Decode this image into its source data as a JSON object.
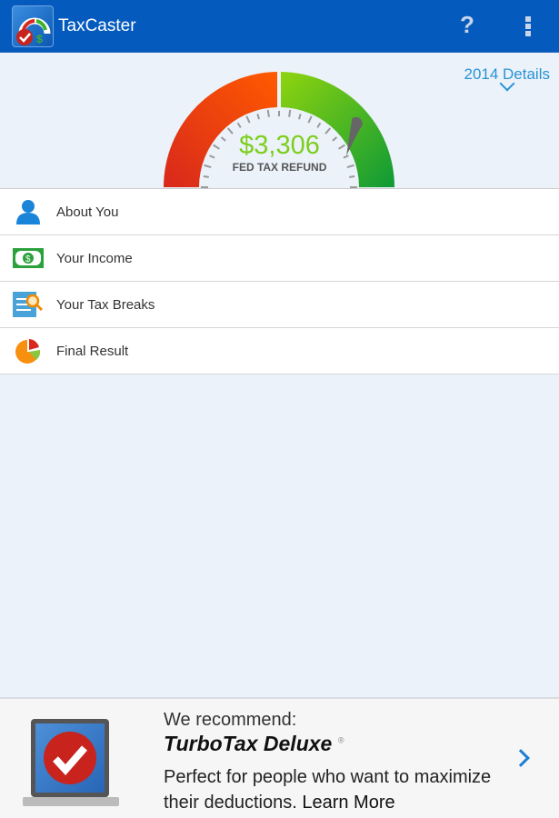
{
  "appbar": {
    "title": "TaxCaster",
    "help_icon": "?",
    "menu_icon": "overflow-menu-icon",
    "color": "#045abd"
  },
  "details": {
    "label": "2014 Details"
  },
  "gauge": {
    "amount": "$3,306",
    "label": "FED TAX REFUND",
    "level": 0.78,
    "colors": {
      "negative": "#e8401a",
      "positive": "#3db22c"
    }
  },
  "menu": {
    "items": [
      {
        "label": "About You",
        "icon": "person-icon"
      },
      {
        "label": "Your Income",
        "icon": "money-icon"
      },
      {
        "label": "Your Tax Breaks",
        "icon": "document-search-icon"
      },
      {
        "label": "Final Result",
        "icon": "pie-chart-icon"
      }
    ]
  },
  "promo": {
    "line1": "We recommend:",
    "product": "TurboTax Deluxe",
    "reg": "®",
    "line3": "Perfect for people who want to maximize their deductions.",
    "link": "Learn More"
  }
}
